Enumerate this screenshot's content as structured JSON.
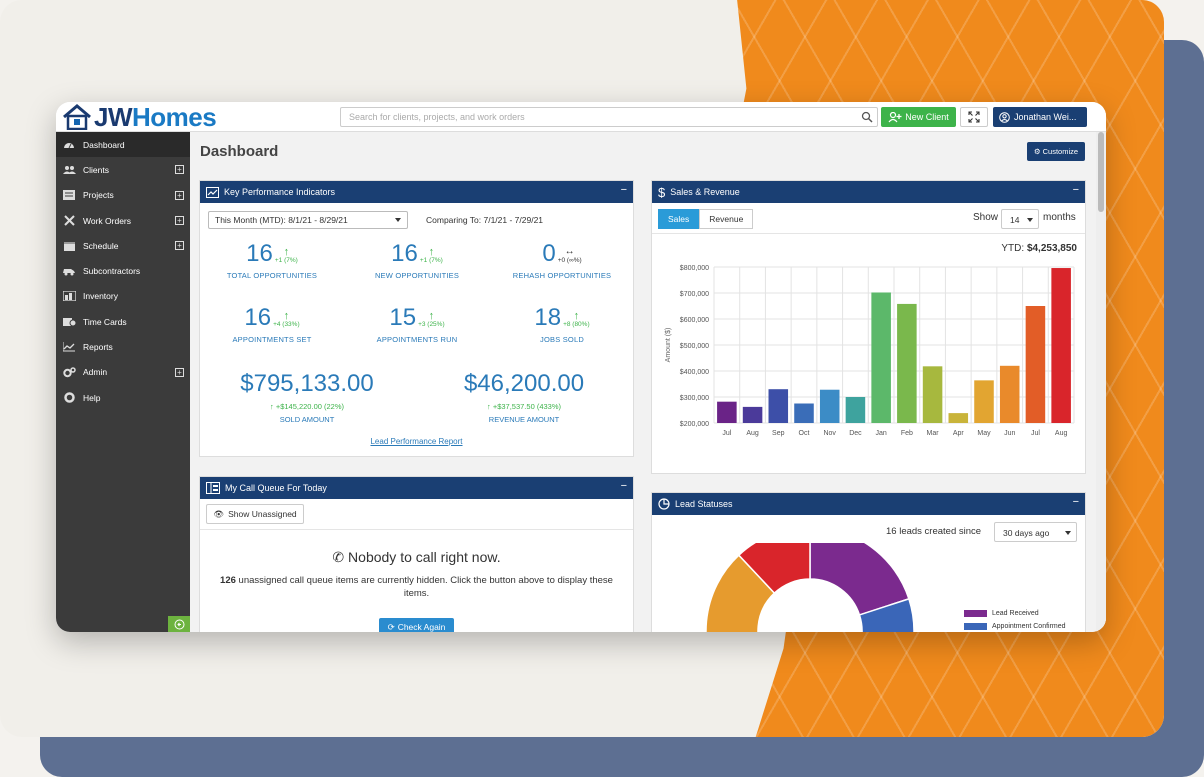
{
  "brand": {
    "name_part1": "JW",
    "name_part2": "Homes"
  },
  "search": {
    "placeholder": "Search for clients, projects, and work orders"
  },
  "topbar": {
    "new_client": "New Client",
    "user": "Jonathan Wei..."
  },
  "sidebar": {
    "items": [
      {
        "label": "Dashboard",
        "icon": "dashboard-icon",
        "expandable": false
      },
      {
        "label": "Clients",
        "icon": "users-icon",
        "expandable": true
      },
      {
        "label": "Projects",
        "icon": "projects-icon",
        "expandable": true
      },
      {
        "label": "Work Orders",
        "icon": "tools-icon",
        "expandable": true
      },
      {
        "label": "Schedule",
        "icon": "calendar-icon",
        "expandable": true
      },
      {
        "label": "Subcontractors",
        "icon": "truck-icon",
        "expandable": false
      },
      {
        "label": "Inventory",
        "icon": "inventory-icon",
        "expandable": false
      },
      {
        "label": "Time Cards",
        "icon": "timecard-icon",
        "expandable": false
      },
      {
        "label": "Reports",
        "icon": "reports-icon",
        "expandable": false
      },
      {
        "label": "Admin",
        "icon": "cogs-icon",
        "expandable": true
      },
      {
        "label": "Help",
        "icon": "lifebuoy-icon",
        "expandable": false
      }
    ]
  },
  "page": {
    "title": "Dashboard",
    "customize": "Customize"
  },
  "kpi": {
    "title": "Key Performance Indicators",
    "period": "This Month (MTD): 8/1/21 - 8/29/21",
    "compare": "Comparing To: 7/1/21 - 7/29/21",
    "metrics": [
      {
        "value": "16",
        "delta": "+1 (7%)",
        "label": "TOTAL OPPORTUNITIES",
        "trend": "up"
      },
      {
        "value": "16",
        "delta": "+1 (7%)",
        "label": "NEW OPPORTUNITIES",
        "trend": "up"
      },
      {
        "value": "0",
        "delta": "+0 (∞%)",
        "label": "REHASH OPPORTUNITIES",
        "trend": "flat"
      },
      {
        "value": "16",
        "delta": "+4 (33%)",
        "label": "APPOINTMENTS SET",
        "trend": "up"
      },
      {
        "value": "15",
        "delta": "+3 (25%)",
        "label": "APPOINTMENTS RUN",
        "trend": "up"
      },
      {
        "value": "18",
        "delta": "+8 (80%)",
        "label": "JOBS SOLD",
        "trend": "up"
      }
    ],
    "money": [
      {
        "value": "$795,133.00",
        "delta": "↑ +$145,220.00 (22%)",
        "label": "SOLD AMOUNT"
      },
      {
        "value": "$46,200.00",
        "delta": "↑ +$37,537.50 (433%)",
        "label": "REVENUE AMOUNT"
      }
    ],
    "link": "Lead Performance Report"
  },
  "call_queue": {
    "title": "My Call Queue For Today",
    "show_button": "Show Unassigned",
    "empty_title": "Nobody to call right now.",
    "msg_count": "126",
    "msg_text": " unassigned call queue items are currently hidden. Click the button above to display these items.",
    "check_button": "Check Again"
  },
  "sales": {
    "title": "Sales & Revenue",
    "tabs": [
      "Sales",
      "Revenue"
    ],
    "active_tab": "Sales",
    "show_label": "Show",
    "show_value": "14",
    "months_label": "months",
    "ytd_label": "YTD:",
    "ytd_value": "$4,253,850"
  },
  "lead_statuses": {
    "title": "Lead Statuses",
    "count_text": "16 leads created since",
    "range": "30 days ago",
    "legend": [
      {
        "label": "Lead Received",
        "color": "#7b2a8e"
      },
      {
        "label": "Appointment Confirmed",
        "color": "#3a66b8"
      }
    ],
    "donut": [
      {
        "color": "#7b2a8e",
        "value": 20
      },
      {
        "color": "#3a66b8",
        "value": 10
      },
      {
        "color": "#3aa89b",
        "value": 12
      },
      {
        "color": "#e69b2e",
        "value": 46
      },
      {
        "color": "#d9252b",
        "value": 12
      }
    ]
  },
  "chart_data": {
    "type": "bar",
    "categories": [
      "Jul",
      "Aug",
      "Sep",
      "Oct",
      "Nov",
      "Dec",
      "Jan",
      "Feb",
      "Mar",
      "Apr",
      "May",
      "Jun",
      "Jul",
      "Aug"
    ],
    "values": [
      282000,
      262000,
      330000,
      275000,
      328000,
      300000,
      702000,
      658000,
      418000,
      238000,
      364000,
      420000,
      650000,
      796000
    ],
    "colors": [
      "#6a2387",
      "#4b3a9a",
      "#3d4fa8",
      "#3a6db8",
      "#3c8cc6",
      "#3ea39e",
      "#5cb86a",
      "#7ab84c",
      "#a7b83e",
      "#c9b43a",
      "#e2a531",
      "#e98a2b",
      "#e25d27",
      "#d9252b"
    ],
    "ylabel": "Amount ($)",
    "ylim": [
      200000,
      800000
    ],
    "yticks": [
      "$200,000",
      "$300,000",
      "$400,000",
      "$500,000",
      "$600,000",
      "$700,000",
      "$800,000"
    ],
    "grid": true
  }
}
